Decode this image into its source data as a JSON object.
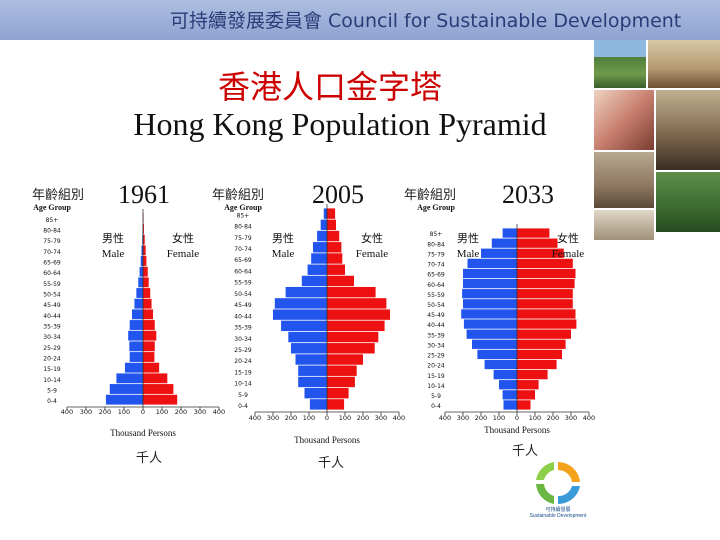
{
  "header": {
    "title": "可持續發展委員會 Council for Sustainable Development"
  },
  "titles": {
    "chinese": "香港人口金字塔",
    "english": "Hong Kong Population Pyramid"
  },
  "labels": {
    "age_group_zh": "年齡組別",
    "age_group_en": "Age Group",
    "male_zh": "男性",
    "male_en": "Male",
    "female_zh": "女性",
    "female_en": "Female",
    "thousand_en": "Thousand Persons",
    "thousand_zh": "千人"
  },
  "colors": {
    "male": "#2255ee",
    "female": "#ee1111",
    "header": "#9aaedb"
  },
  "logo": {
    "line1": "可持續發展",
    "line2": "Sustainable Development"
  },
  "chart_data": [
    {
      "type": "bar",
      "title": "1961",
      "xlabel": "Thousand Persons",
      "ylabel": "Age Group",
      "categories": [
        "85+",
        "80-84",
        "75-79",
        "70-74",
        "65-69",
        "60-64",
        "55-59",
        "50-54",
        "45-49",
        "40-44",
        "35-39",
        "30-34",
        "25-29",
        "20-24",
        "15-19",
        "10-14",
        "5-9",
        "0-4"
      ],
      "xticks": [
        "400",
        "300",
        "200",
        "100",
        "0",
        "100",
        "200",
        "300",
        "400"
      ],
      "xlim": [
        -400,
        400
      ],
      "series": [
        {
          "name": "Male",
          "values": [
            1,
            2,
            4,
            8,
            12,
            18,
            25,
            35,
            45,
            58,
            70,
            78,
            72,
            70,
            95,
            140,
            175,
            195
          ]
        },
        {
          "name": "Female",
          "values": [
            3,
            5,
            9,
            14,
            18,
            25,
            30,
            38,
            45,
            53,
            62,
            70,
            62,
            60,
            85,
            128,
            160,
            180
          ]
        }
      ]
    },
    {
      "type": "bar",
      "title": "2005",
      "xlabel": "Thousand Persons",
      "ylabel": "Age Group",
      "categories": [
        "85+",
        "80-84",
        "75-79",
        "70-74",
        "65-69",
        "60-64",
        "55-59",
        "50-54",
        "45-49",
        "40-44",
        "35-39",
        "30-34",
        "25-29",
        "20-24",
        "15-19",
        "10-14",
        "5-9",
        "0-4"
      ],
      "xticks": [
        "400",
        "300",
        "200",
        "100",
        "0",
        "100",
        "200",
        "300",
        "400"
      ],
      "xlim": [
        -400,
        400
      ],
      "series": [
        {
          "name": "Male",
          "values": [
            18,
            35,
            55,
            78,
            88,
            108,
            140,
            230,
            290,
            300,
            255,
            215,
            200,
            175,
            160,
            160,
            125,
            95
          ]
        },
        {
          "name": "Female",
          "values": [
            45,
            50,
            68,
            80,
            85,
            100,
            150,
            270,
            330,
            350,
            320,
            285,
            265,
            200,
            165,
            155,
            120,
            95
          ]
        }
      ]
    },
    {
      "type": "bar",
      "title": "2033",
      "xlabel": "Thousand Persons",
      "ylabel": "Age Group",
      "categories": [
        "85+",
        "80-84",
        "75-79",
        "70-74",
        "65-69",
        "60-64",
        "55-59",
        "50-54",
        "45-49",
        "40-44",
        "35-39",
        "30-34",
        "25-29",
        "20-24",
        "15-19",
        "10-14",
        "5-9",
        "0-4"
      ],
      "xticks": [
        "400",
        "300",
        "200",
        "100",
        "0",
        "100",
        "200",
        "300",
        "400"
      ],
      "xlim": [
        -400,
        400
      ],
      "series": [
        {
          "name": "Male",
          "values": [
            80,
            140,
            200,
            275,
            300,
            300,
            305,
            300,
            310,
            295,
            280,
            250,
            220,
            180,
            130,
            100,
            80,
            75
          ]
        },
        {
          "name": "Female",
          "values": [
            180,
            225,
            260,
            310,
            325,
            320,
            310,
            310,
            325,
            330,
            300,
            270,
            250,
            220,
            170,
            120,
            100,
            75
          ]
        }
      ]
    }
  ]
}
